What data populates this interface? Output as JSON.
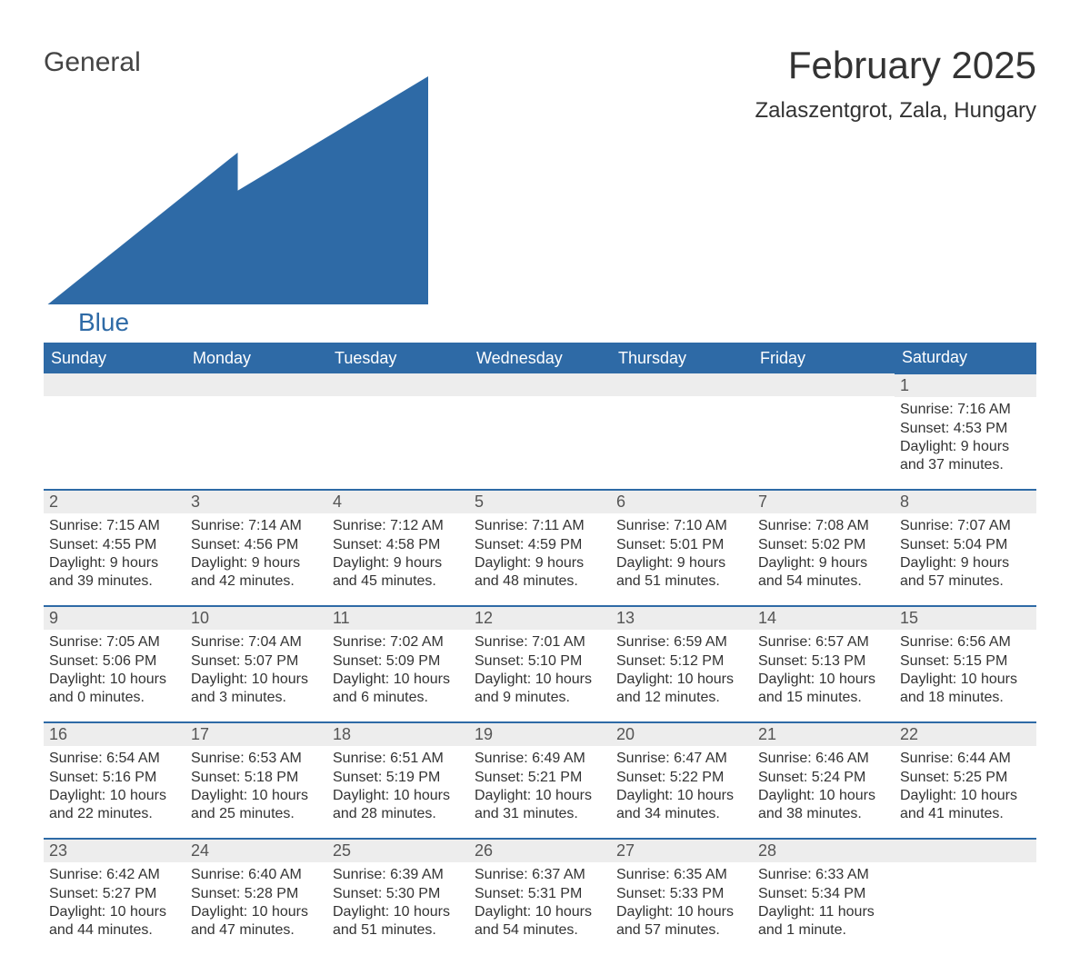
{
  "logo": {
    "text1": "General",
    "text2": "Blue",
    "brand_color": "#2e6aa6"
  },
  "header": {
    "title": "February 2025",
    "location": "Zalaszentgrot, Zala, Hungary"
  },
  "style": {
    "header_bg": "#2e6aa6",
    "header_fg": "#ffffff",
    "daynum_bg": "#ededed",
    "row_border": "#2e6aa6",
    "text_color": "#333333",
    "font_family": "Arial, Helvetica, sans-serif",
    "title_fontsize": 42,
    "location_fontsize": 24,
    "dayhead_fontsize": 18,
    "body_fontsize": 16
  },
  "weekdays": [
    "Sunday",
    "Monday",
    "Tuesday",
    "Wednesday",
    "Thursday",
    "Friday",
    "Saturday"
  ],
  "grid": [
    [
      null,
      null,
      null,
      null,
      null,
      null,
      {
        "n": "1",
        "sunrise": "7:16 AM",
        "sunset": "4:53 PM",
        "daylight": "9 hours and 37 minutes."
      }
    ],
    [
      {
        "n": "2",
        "sunrise": "7:15 AM",
        "sunset": "4:55 PM",
        "daylight": "9 hours and 39 minutes."
      },
      {
        "n": "3",
        "sunrise": "7:14 AM",
        "sunset": "4:56 PM",
        "daylight": "9 hours and 42 minutes."
      },
      {
        "n": "4",
        "sunrise": "7:12 AM",
        "sunset": "4:58 PM",
        "daylight": "9 hours and 45 minutes."
      },
      {
        "n": "5",
        "sunrise": "7:11 AM",
        "sunset": "4:59 PM",
        "daylight": "9 hours and 48 minutes."
      },
      {
        "n": "6",
        "sunrise": "7:10 AM",
        "sunset": "5:01 PM",
        "daylight": "9 hours and 51 minutes."
      },
      {
        "n": "7",
        "sunrise": "7:08 AM",
        "sunset": "5:02 PM",
        "daylight": "9 hours and 54 minutes."
      },
      {
        "n": "8",
        "sunrise": "7:07 AM",
        "sunset": "5:04 PM",
        "daylight": "9 hours and 57 minutes."
      }
    ],
    [
      {
        "n": "9",
        "sunrise": "7:05 AM",
        "sunset": "5:06 PM",
        "daylight": "10 hours and 0 minutes."
      },
      {
        "n": "10",
        "sunrise": "7:04 AM",
        "sunset": "5:07 PM",
        "daylight": "10 hours and 3 minutes."
      },
      {
        "n": "11",
        "sunrise": "7:02 AM",
        "sunset": "5:09 PM",
        "daylight": "10 hours and 6 minutes."
      },
      {
        "n": "12",
        "sunrise": "7:01 AM",
        "sunset": "5:10 PM",
        "daylight": "10 hours and 9 minutes."
      },
      {
        "n": "13",
        "sunrise": "6:59 AM",
        "sunset": "5:12 PM",
        "daylight": "10 hours and 12 minutes."
      },
      {
        "n": "14",
        "sunrise": "6:57 AM",
        "sunset": "5:13 PM",
        "daylight": "10 hours and 15 minutes."
      },
      {
        "n": "15",
        "sunrise": "6:56 AM",
        "sunset": "5:15 PM",
        "daylight": "10 hours and 18 minutes."
      }
    ],
    [
      {
        "n": "16",
        "sunrise": "6:54 AM",
        "sunset": "5:16 PM",
        "daylight": "10 hours and 22 minutes."
      },
      {
        "n": "17",
        "sunrise": "6:53 AM",
        "sunset": "5:18 PM",
        "daylight": "10 hours and 25 minutes."
      },
      {
        "n": "18",
        "sunrise": "6:51 AM",
        "sunset": "5:19 PM",
        "daylight": "10 hours and 28 minutes."
      },
      {
        "n": "19",
        "sunrise": "6:49 AM",
        "sunset": "5:21 PM",
        "daylight": "10 hours and 31 minutes."
      },
      {
        "n": "20",
        "sunrise": "6:47 AM",
        "sunset": "5:22 PM",
        "daylight": "10 hours and 34 minutes."
      },
      {
        "n": "21",
        "sunrise": "6:46 AM",
        "sunset": "5:24 PM",
        "daylight": "10 hours and 38 minutes."
      },
      {
        "n": "22",
        "sunrise": "6:44 AM",
        "sunset": "5:25 PM",
        "daylight": "10 hours and 41 minutes."
      }
    ],
    [
      {
        "n": "23",
        "sunrise": "6:42 AM",
        "sunset": "5:27 PM",
        "daylight": "10 hours and 44 minutes."
      },
      {
        "n": "24",
        "sunrise": "6:40 AM",
        "sunset": "5:28 PM",
        "daylight": "10 hours and 47 minutes."
      },
      {
        "n": "25",
        "sunrise": "6:39 AM",
        "sunset": "5:30 PM",
        "daylight": "10 hours and 51 minutes."
      },
      {
        "n": "26",
        "sunrise": "6:37 AM",
        "sunset": "5:31 PM",
        "daylight": "10 hours and 54 minutes."
      },
      {
        "n": "27",
        "sunrise": "6:35 AM",
        "sunset": "5:33 PM",
        "daylight": "10 hours and 57 minutes."
      },
      {
        "n": "28",
        "sunrise": "6:33 AM",
        "sunset": "5:34 PM",
        "daylight": "11 hours and 1 minute."
      },
      null
    ]
  ],
  "labels": {
    "sunrise": "Sunrise: ",
    "sunset": "Sunset: ",
    "daylight": "Daylight: "
  }
}
